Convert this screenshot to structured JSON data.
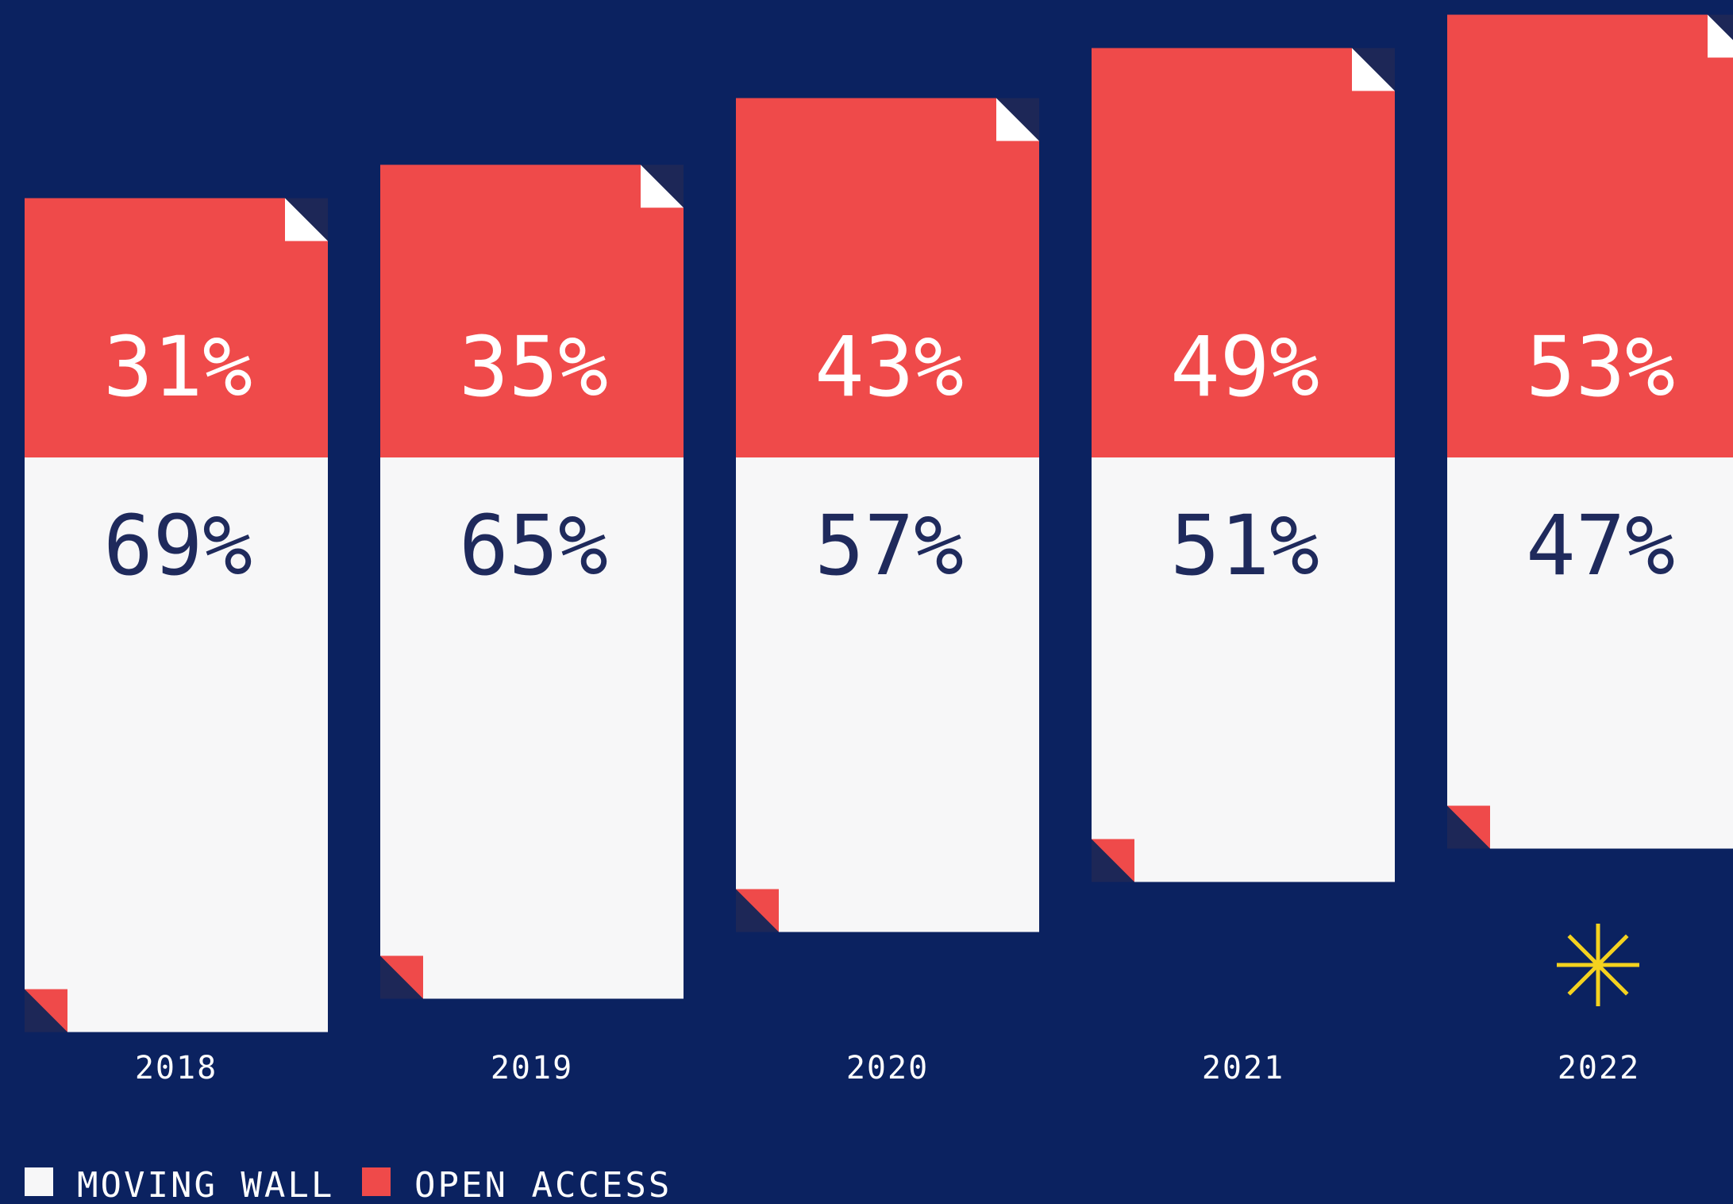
{
  "chart_data": {
    "type": "bar",
    "stacked": true,
    "percent_stacked": true,
    "categories": [
      "2018",
      "2019",
      "2020",
      "2021",
      "2022"
    ],
    "series": [
      {
        "name": "OPEN ACCESS",
        "values": [
          31,
          35,
          43,
          49,
          53
        ],
        "labels": [
          "31%",
          "35%",
          "43%",
          "49%",
          "53%"
        ],
        "color": "#ef4a4a"
      },
      {
        "name": "MOVING WALL",
        "values": [
          69,
          65,
          57,
          51,
          47
        ],
        "labels": [
          "69%",
          "65%",
          "57%",
          "51%",
          "47%"
        ],
        "color": "#f7f7f8"
      }
    ],
    "legend_position": "bottom-left",
    "annotation_icon": "sparkle-icon"
  },
  "colors": {
    "background": "#0b2260",
    "open_access": "#ef4a4a",
    "moving_wall": "#f7f7f8",
    "text_dark": "#1f2a5c",
    "text_light": "#ffffff",
    "corner_dark": "#1d2757",
    "sparkle": "#f4d21f"
  }
}
